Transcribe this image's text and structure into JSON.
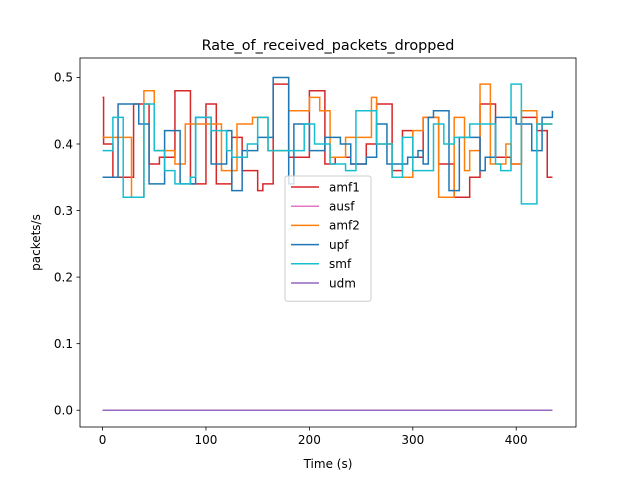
{
  "chart_data": {
    "type": "line",
    "title": "Rate_of_received_packets_dropped",
    "xlabel": "Time (s)",
    "ylabel": "packets/s",
    "xlim": [
      -21.8,
      457.8
    ],
    "ylim": [
      -0.0252,
      0.5292
    ],
    "xticks": [
      0,
      100,
      200,
      300,
      400
    ],
    "yticks": [
      0.0,
      0.1,
      0.2,
      0.3,
      0.4,
      0.5
    ],
    "xtick_labels": [
      "0",
      "100",
      "200",
      "300",
      "400"
    ],
    "ytick_labels": [
      "0.0",
      "0.1",
      "0.2",
      "0.3",
      "0.4",
      "0.5"
    ],
    "grid": false,
    "legend_position": "center",
    "step": "post",
    "series": [
      {
        "name": "amf1",
        "color": "#d62728",
        "x": [
          0,
          1,
          10,
          15,
          30,
          45,
          55,
          70,
          85,
          100,
          110,
          125,
          135,
          150,
          155,
          165,
          180,
          190,
          200,
          215,
          225,
          240,
          255,
          265,
          280,
          290,
          300,
          310,
          325,
          340,
          355,
          365,
          380,
          395,
          405,
          420,
          430,
          435
        ],
        "values": [
          0.47,
          0.4,
          0.35,
          0.35,
          0.46,
          0.37,
          0.38,
          0.48,
          0.34,
          0.46,
          0.34,
          0.41,
          0.36,
          0.33,
          0.34,
          0.49,
          0.38,
          0.38,
          0.48,
          0.37,
          0.38,
          0.37,
          0.4,
          0.46,
          0.36,
          0.42,
          0.38,
          0.44,
          0.37,
          0.32,
          0.35,
          0.46,
          0.38,
          0.37,
          0.44,
          0.42,
          0.35,
          0.35
        ]
      },
      {
        "name": "ausf",
        "color": "#e377c2",
        "x": [
          0,
          435
        ],
        "values": [
          0.0,
          0.0
        ]
      },
      {
        "name": "amf2",
        "color": "#ff7f0e",
        "x": [
          0,
          20,
          28,
          40,
          50,
          70,
          80,
          95,
          115,
          130,
          145,
          160,
          180,
          200,
          210,
          220,
          235,
          260,
          265,
          280,
          300,
          310,
          325,
          340,
          350,
          355,
          365,
          375,
          390,
          395,
          405,
          420,
          435
        ],
        "values": [
          0.41,
          0.41,
          0.32,
          0.48,
          0.39,
          0.37,
          0.43,
          0.43,
          0.36,
          0.43,
          0.44,
          0.39,
          0.45,
          0.47,
          0.45,
          0.38,
          0.41,
          0.47,
          0.4,
          0.35,
          0.42,
          0.44,
          0.32,
          0.44,
          0.36,
          0.39,
          0.49,
          0.37,
          0.4,
          0.37,
          0.45,
          0.43,
          0.43
        ]
      },
      {
        "name": "upf",
        "color": "#1f77b4",
        "x": [
          0,
          15,
          35,
          45,
          60,
          75,
          90,
          105,
          120,
          125,
          135,
          150,
          165,
          180,
          185,
          200,
          215,
          230,
          240,
          255,
          265,
          275,
          295,
          305,
          310,
          315,
          320,
          335,
          345,
          365,
          370,
          380,
          385,
          400,
          415,
          425,
          435
        ],
        "values": [
          0.35,
          0.46,
          0.43,
          0.34,
          0.42,
          0.34,
          0.44,
          0.37,
          0.42,
          0.33,
          0.39,
          0.41,
          0.5,
          0.34,
          0.43,
          0.39,
          0.41,
          0.4,
          0.37,
          0.38,
          0.43,
          0.37,
          0.38,
          0.39,
          0.37,
          0.44,
          0.45,
          0.33,
          0.41,
          0.36,
          0.38,
          0.44,
          0.44,
          0.43,
          0.39,
          0.44,
          0.45
        ]
      },
      {
        "name": "smf",
        "color": "#17becf",
        "x": [
          0,
          10,
          20,
          40,
          50,
          60,
          70,
          85,
          90,
          105,
          120,
          125,
          140,
          150,
          160,
          175,
          195,
          205,
          220,
          235,
          245,
          265,
          280,
          290,
          300,
          315,
          320,
          330,
          340,
          355,
          365,
          380,
          385,
          395,
          405,
          420,
          435
        ],
        "values": [
          0.39,
          0.44,
          0.32,
          0.46,
          0.39,
          0.36,
          0.34,
          0.35,
          0.44,
          0.42,
          0.39,
          0.38,
          0.4,
          0.44,
          0.39,
          0.39,
          0.43,
          0.4,
          0.37,
          0.36,
          0.45,
          0.4,
          0.35,
          0.41,
          0.36,
          0.36,
          0.43,
          0.4,
          0.41,
          0.43,
          0.43,
          0.37,
          0.36,
          0.49,
          0.31,
          0.43,
          0.43
        ]
      },
      {
        "name": "udm",
        "color": "#9467bd",
        "x": [
          0,
          435
        ],
        "values": [
          0.0,
          0.0
        ]
      }
    ]
  }
}
